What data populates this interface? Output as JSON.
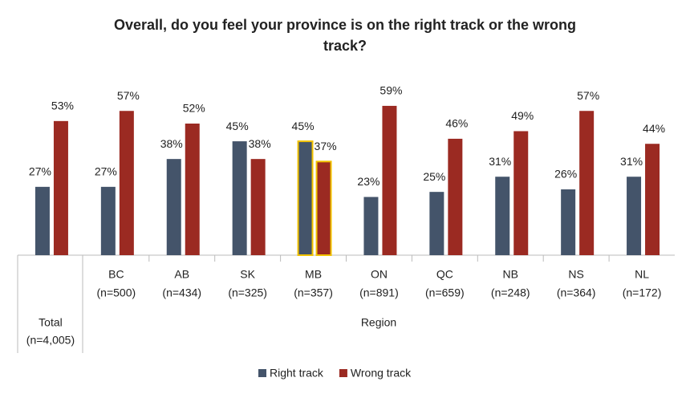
{
  "chart_data": {
    "type": "bar",
    "title_lines": [
      "Overall, do you feel your province is on the right track or the wrong",
      "track?"
    ],
    "categories": [
      "Total",
      "BC",
      "AB",
      "SK",
      "MB",
      "ON",
      "QC",
      "NB",
      "NS",
      "NL"
    ],
    "category_sublabels": [
      "(n=4,005)",
      "(n=500)",
      "(n=434)",
      "(n=325)",
      "(n=357)",
      "(n=891)",
      "(n=659)",
      "(n=248)",
      "(n=364)",
      "(n=172)"
    ],
    "group_label": "Region",
    "series": [
      {
        "name": "Right track",
        "color": "#44546a",
        "values": [
          27,
          27,
          38,
          45,
          45,
          23,
          25,
          31,
          26,
          31
        ],
        "value_labels": [
          "27%",
          "27%",
          "38%",
          "45%",
          "45%",
          "23%",
          "25%",
          "31%",
          "26%",
          "31%"
        ]
      },
      {
        "name": "Wrong track",
        "color": "#9b2a22",
        "values": [
          53,
          57,
          52,
          38,
          37,
          59,
          46,
          49,
          57,
          44
        ],
        "value_labels": [
          "53%",
          "57%",
          "52%",
          "38%",
          "37%",
          "59%",
          "46%",
          "49%",
          "57%",
          "44%"
        ]
      }
    ],
    "ylim": [
      0,
      65
    ],
    "highlighted_category": 4,
    "highlight_color": "#f2c200"
  }
}
